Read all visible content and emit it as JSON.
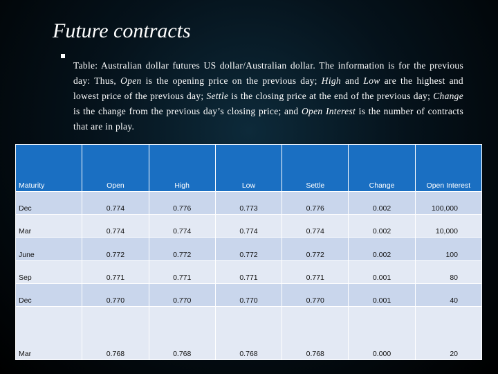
{
  "title": "Future contracts",
  "caption": [
    {
      "text": "Table: Australian dollar futures US dollar/Australian dollar. The information is for the previous day: Thus, ",
      "italic": false
    },
    {
      "text": "Open",
      "italic": true
    },
    {
      "text": " is the opening price on the previous day; ",
      "italic": false
    },
    {
      "text": "High",
      "italic": true
    },
    {
      "text": " and ",
      "italic": false
    },
    {
      "text": "Low",
      "italic": true
    },
    {
      "text": " are the highest and lowest price of the previous day; ",
      "italic": false
    },
    {
      "text": "Settle",
      "italic": true
    },
    {
      "text": " is the closing price at the end of the previous day; ",
      "italic": false
    },
    {
      "text": "Change",
      "italic": true
    },
    {
      "text": " is the change from the previous day’s closing price; and ",
      "italic": false
    },
    {
      "text": "Open Interest",
      "italic": true
    },
    {
      "text": " is the number of contracts that are in play.",
      "italic": false
    }
  ],
  "table": {
    "headers": [
      "Maturity",
      "Open",
      "High",
      "Low",
      "Settle",
      "Change",
      "Open Interest"
    ],
    "rows": [
      [
        "Dec",
        "0.774",
        "0.776",
        "0.773",
        "0.776",
        "0.002",
        "100,000"
      ],
      [
        "Mar",
        "0.774",
        "0.774",
        "0.774",
        "0.774",
        "0.002",
        "10,000"
      ],
      [
        "June",
        "0.772",
        "0.772",
        "0.772",
        "0.772",
        "0.002",
        "100"
      ],
      [
        "Sep",
        "0.771",
        "0.771",
        "0.771",
        "0.771",
        "0.001",
        "80"
      ],
      [
        "Dec",
        "0.770",
        "0.770",
        "0.770",
        "0.770",
        "0.001",
        "40"
      ],
      [
        "Mar",
        "0.768",
        "0.768",
        "0.768",
        "0.768",
        "0.000",
        "20"
      ]
    ]
  },
  "colors": {
    "header_bg": "#1a6fc2",
    "row_odd_bg": "#c9d6ec",
    "row_even_bg": "#e3e9f4",
    "background": "#000000"
  }
}
